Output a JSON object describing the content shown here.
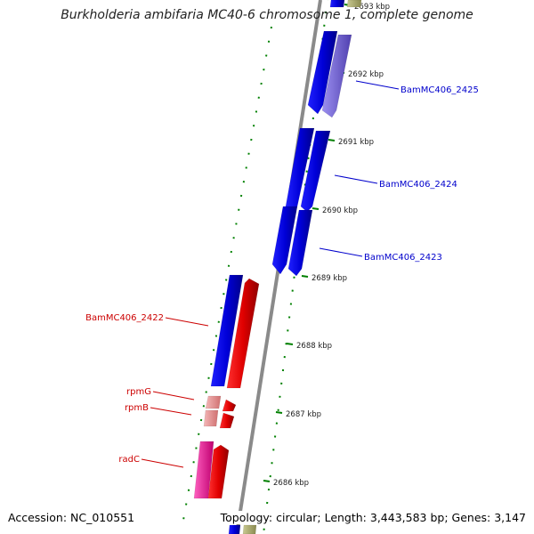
{
  "title": "Burkholderia ambifaria MC40-6 chromosome 1, complete genome",
  "footer": {
    "accession": "Accession: NC_010551",
    "summary": "Topology: circular; Length: 3,443,583 bp; Genes: 3,147"
  },
  "colors": {
    "forward_gene": "#e00000",
    "reverse_gene": "#0000e0",
    "trna_gene": "#e8a0a0",
    "rrna_gene": "#f02090",
    "faded_gene": "#7060d0",
    "backbone": "#888888",
    "tick": "#008000",
    "label_forward": "#cc0000",
    "label_reverse": "#0000cc"
  },
  "scale_ticks": [
    {
      "label": "2693 kbp"
    },
    {
      "label": "2692 kbp"
    },
    {
      "label": "2691 kbp"
    },
    {
      "label": "2690 kbp"
    },
    {
      "label": "2689 kbp"
    },
    {
      "label": "2688 kbp"
    },
    {
      "label": "2687 kbp"
    },
    {
      "label": "2686 kbp"
    }
  ],
  "gene_labels": [
    {
      "name": "BamMC406_2425",
      "strand": "reverse"
    },
    {
      "name": "BamMC406_2424",
      "strand": "reverse"
    },
    {
      "name": "BamMC406_2423",
      "strand": "reverse"
    },
    {
      "name": "BamMC406_2422",
      "strand": "forward"
    },
    {
      "name": "rpmG",
      "strand": "forward"
    },
    {
      "name": "rpmB",
      "strand": "forward"
    },
    {
      "name": "radC",
      "strand": "forward"
    }
  ]
}
